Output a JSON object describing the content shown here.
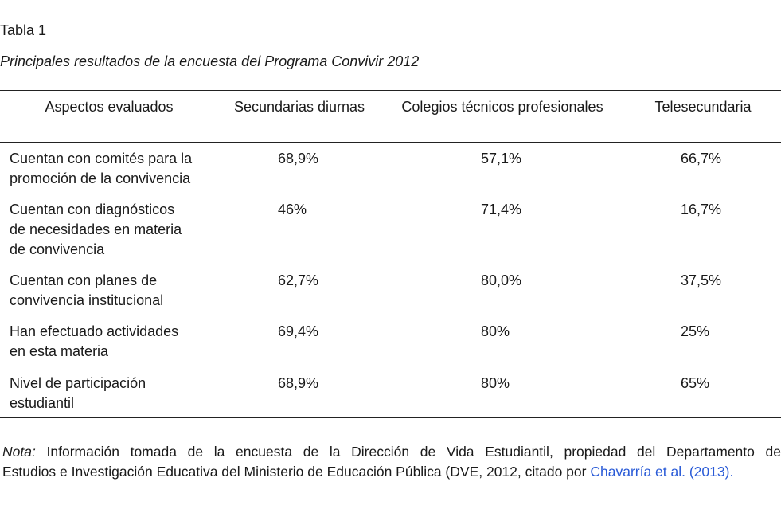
{
  "caption": {
    "label": "Tabla 1",
    "title": "Principales resultados de la encuesta del  Programa Convivir 2012"
  },
  "table": {
    "headers": [
      "Aspectos evaluados",
      "Secundarias diurnas",
      "Colegios técnicos profesionales",
      "Telesecundaria"
    ],
    "rows": [
      {
        "aspect_lines": [
          "Cuentan con comités para la",
          "promoción de la convivencia"
        ],
        "values": [
          "68,9%",
          "57,1%",
          "66,7%"
        ]
      },
      {
        "aspect_lines": [
          "Cuentan con diagnósticos",
          "de necesidades en materia",
          "de convivencia"
        ],
        "values": [
          "46%",
          "71,4%",
          "16,7%"
        ]
      },
      {
        "aspect_lines": [
          "Cuentan con planes de",
          "convivencia institucional"
        ],
        "values": [
          "62,7%",
          "80,0%",
          "37,5%"
        ]
      },
      {
        "aspect_lines": [
          "Han efectuado actividades",
          "en esta materia"
        ],
        "values": [
          "69,4%",
          "80%",
          "25%"
        ]
      },
      {
        "aspect_lines": [
          "Nivel de participación",
          "estudiantil"
        ],
        "values": [
          "68,9%",
          "80%",
          "65%"
        ]
      }
    ]
  },
  "note": {
    "label": "Nota:",
    "line1": "Información tomada de la encuesta de la Dirección de Vida Estudiantil, propiedad del Departamento de",
    "line2": "Estudios e Investigación Educativa del Ministerio de Educación Pública (DVE, 2012,  citado por",
    "link": "Chavarría et al. (2013)."
  }
}
